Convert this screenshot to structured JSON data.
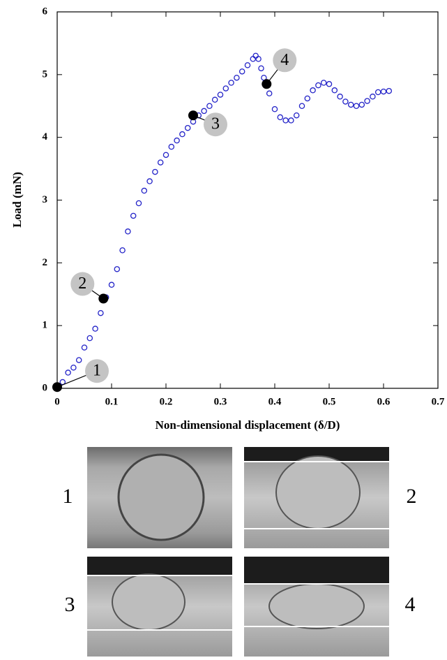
{
  "chart_data": {
    "type": "scatter",
    "xlabel": "Non-dimensional displacement (δ/D)",
    "ylabel": "Load (mN)",
    "xlim": [
      0,
      0.7
    ],
    "xticks": [
      0,
      0.1,
      0.2,
      0.3,
      0.4,
      0.5,
      0.6,
      0.7
    ],
    "ylim": [
      0,
      6
    ],
    "yticks": [
      0,
      1,
      2,
      3,
      4,
      5,
      6
    ],
    "series": [
      {
        "color": "#2323c8",
        "x": [
          0,
          0.01,
          0.02,
          0.03,
          0.04,
          0.05,
          0.06,
          0.07,
          0.08,
          0.09,
          0.1,
          0.11,
          0.12,
          0.13,
          0.14,
          0.15,
          0.16,
          0.17,
          0.18,
          0.19,
          0.2,
          0.21,
          0.22,
          0.23,
          0.24,
          0.25,
          0.26,
          0.27,
          0.28,
          0.29,
          0.3,
          0.31,
          0.32,
          0.33,
          0.34,
          0.35,
          0.36,
          0.365,
          0.37,
          0.375,
          0.38,
          0.39,
          0.4,
          0.41,
          0.42,
          0.43,
          0.44,
          0.45,
          0.46,
          0.47,
          0.48,
          0.49,
          0.5,
          0.51,
          0.52,
          0.53,
          0.54,
          0.55,
          0.56,
          0.57,
          0.58,
          0.59,
          0.6,
          0.61
        ],
        "values": [
          0,
          0.1,
          0.25,
          0.33,
          0.45,
          0.65,
          0.8,
          0.95,
          1.2,
          1.45,
          1.65,
          1.9,
          2.2,
          2.5,
          2.75,
          2.95,
          3.15,
          3.3,
          3.45,
          3.6,
          3.72,
          3.85,
          3.95,
          4.05,
          4.15,
          4.25,
          4.35,
          4.42,
          4.5,
          4.6,
          4.68,
          4.78,
          4.87,
          4.95,
          5.05,
          5.15,
          5.25,
          5.3,
          5.25,
          5.1,
          4.95,
          4.7,
          4.45,
          4.32,
          4.27,
          4.27,
          4.35,
          4.5,
          4.62,
          4.75,
          4.83,
          4.87,
          4.85,
          4.75,
          4.65,
          4.57,
          4.52,
          4.5,
          4.52,
          4.58,
          4.65,
          4.72,
          4.73,
          4.74
        ]
      }
    ],
    "annotations": [
      {
        "x": 0,
        "y": 0.02,
        "label": "1"
      },
      {
        "x": 0.085,
        "y": 1.43,
        "label": "2"
      },
      {
        "x": 0.25,
        "y": 4.35,
        "label": "3"
      },
      {
        "x": 0.385,
        "y": 4.85,
        "label": "4"
      }
    ],
    "photo_labels": [
      "1",
      "2",
      "3",
      "4"
    ]
  }
}
